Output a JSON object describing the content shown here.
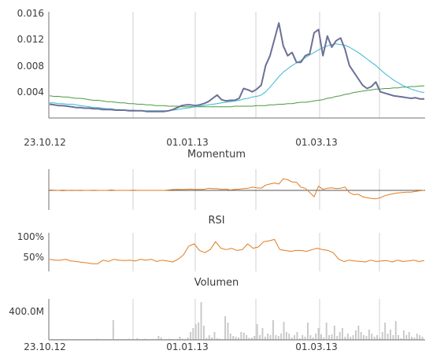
{
  "chart_data": [
    {
      "type": "line",
      "panel": "price",
      "y_ticks": [
        "0.016",
        "0.012",
        "0.008",
        "0.004"
      ],
      "y_tick_values": [
        0.016,
        0.012,
        0.008,
        0.004
      ],
      "ylim": [
        0,
        0.0162
      ],
      "x_tick_labels": [
        "23.10.12",
        "01.01.13",
        "01.03.13"
      ],
      "grid": "vertical",
      "series": [
        {
          "key": "price",
          "color": "#6b7096",
          "values": [
            0.0021,
            0.002,
            0.0019,
            0.0019,
            0.0018,
            0.0017,
            0.0016,
            0.0016,
            0.0015,
            0.0015,
            0.0014,
            0.0014,
            0.0013,
            0.0013,
            0.0013,
            0.0012,
            0.0012,
            0.0012,
            0.0011,
            0.0011,
            0.0011,
            0.0011,
            0.001,
            0.001,
            0.001,
            0.001,
            0.001,
            0.0011,
            0.0013,
            0.0016,
            0.0019,
            0.002,
            0.002,
            0.0019,
            0.002,
            0.0022,
            0.0025,
            0.003,
            0.0035,
            0.0028,
            0.0026,
            0.0027,
            0.0027,
            0.003,
            0.0045,
            0.0043,
            0.004,
            0.0044,
            0.005,
            0.008,
            0.0095,
            0.012,
            0.0145,
            0.011,
            0.0095,
            0.01,
            0.0085,
            0.0085,
            0.0095,
            0.0098,
            0.013,
            0.0135,
            0.0095,
            0.0125,
            0.0108,
            0.0118,
            0.0122,
            0.0105,
            0.008,
            0.007,
            0.006,
            0.005,
            0.0045,
            0.0048,
            0.0055,
            0.004,
            0.0038,
            0.0036,
            0.0034,
            0.0033,
            0.0032,
            0.0031,
            0.003,
            0.0031,
            0.0029,
            0.0029
          ]
        },
        {
          "key": "moving-average-fast",
          "color": "#39b8d4",
          "values": [
            0.0023,
            0.0023,
            0.0022,
            0.0022,
            0.0021,
            0.0021,
            0.002,
            0.0019,
            0.0018,
            0.0017,
            0.0016,
            0.0016,
            0.0015,
            0.0014,
            0.0014,
            0.0013,
            0.0013,
            0.0012,
            0.0012,
            0.0012,
            0.0011,
            0.0011,
            0.0011,
            0.0011,
            0.0011,
            0.0011,
            0.0011,
            0.0011,
            0.0012,
            0.0013,
            0.0014,
            0.0015,
            0.0016,
            0.0017,
            0.0018,
            0.0019,
            0.002,
            0.0021,
            0.0022,
            0.0023,
            0.0024,
            0.0025,
            0.0026,
            0.0027,
            0.0029,
            0.003,
            0.0032,
            0.0033,
            0.0035,
            0.004,
            0.0047,
            0.0055,
            0.0063,
            0.007,
            0.0075,
            0.008,
            0.0084,
            0.0088,
            0.0092,
            0.0096,
            0.01,
            0.0104,
            0.0107,
            0.011,
            0.0112,
            0.0113,
            0.0112,
            0.0111,
            0.0108,
            0.0104,
            0.01,
            0.0095,
            0.009,
            0.0085,
            0.008,
            0.0074,
            0.0068,
            0.0063,
            0.0058,
            0.0054,
            0.005,
            0.0047,
            0.0044,
            0.0042,
            0.004,
            0.0039
          ]
        },
        {
          "key": "moving-average-slow",
          "color": "#4a9a3e",
          "values": [
            0.0034,
            0.0033,
            0.0033,
            0.0032,
            0.0032,
            0.0031,
            0.003,
            0.003,
            0.0029,
            0.0028,
            0.0027,
            0.0027,
            0.0026,
            0.0025,
            0.0025,
            0.0024,
            0.0023,
            0.0023,
            0.0022,
            0.0022,
            0.0021,
            0.0021,
            0.002,
            0.002,
            0.0019,
            0.0019,
            0.0019,
            0.0018,
            0.0018,
            0.0018,
            0.0017,
            0.0017,
            0.0017,
            0.0017,
            0.0017,
            0.0017,
            0.0017,
            0.0017,
            0.0017,
            0.0017,
            0.0017,
            0.0017,
            0.0018,
            0.0018,
            0.0018,
            0.0018,
            0.0018,
            0.0019,
            0.0019,
            0.0019,
            0.002,
            0.002,
            0.0021,
            0.0021,
            0.0022,
            0.0022,
            0.0023,
            0.0024,
            0.0024,
            0.0025,
            0.0026,
            0.0027,
            0.0028,
            0.003,
            0.0031,
            0.0033,
            0.0034,
            0.0036,
            0.0037,
            0.0039,
            0.004,
            0.0041,
            0.0042,
            0.0043,
            0.0044,
            0.0044,
            0.0045,
            0.0045,
            0.0046,
            0.0046,
            0.0047,
            0.0047,
            0.0048,
            0.0048,
            0.0049,
            0.0049
          ]
        }
      ]
    },
    {
      "type": "line",
      "panel": "momentum",
      "title": "Momentum",
      "ylim": [
        -1,
        1
      ],
      "baseline": 0,
      "series": [
        {
          "key": "momentum",
          "color": "#e07a1f",
          "values": [
            0.02,
            0.01,
            0.0,
            -0.02,
            0.0,
            -0.01,
            0.0,
            -0.01,
            0.0,
            0.0,
            -0.01,
            0.0,
            0.0,
            0.0,
            0.02,
            0.0,
            0.0,
            0.0,
            0.0,
            0.01,
            0.0,
            0.0,
            0.0,
            0.0,
            0.0,
            0.0,
            0.0,
            0.02,
            0.04,
            0.05,
            0.04,
            0.05,
            0.06,
            0.04,
            0.05,
            0.05,
            0.1,
            0.08,
            0.08,
            0.05,
            0.06,
            0.02,
            0.05,
            0.06,
            0.08,
            0.1,
            0.15,
            0.12,
            0.1,
            0.25,
            0.3,
            0.35,
            0.3,
            0.55,
            0.5,
            0.4,
            0.38,
            0.15,
            0.1,
            -0.1,
            -0.3,
            0.2,
            0.05,
            0.1,
            0.12,
            0.08,
            0.1,
            0.15,
            -0.1,
            -0.2,
            -0.18,
            -0.3,
            -0.35,
            -0.38,
            -0.4,
            -0.35,
            -0.25,
            -0.2,
            -0.15,
            -0.12,
            -0.1,
            -0.08,
            -0.08,
            -0.05,
            -0.02,
            0.0
          ]
        }
      ]
    },
    {
      "type": "line",
      "panel": "rsi",
      "title": "RSI",
      "y_ticks": [
        "100%",
        "50%"
      ],
      "y_tick_values": [
        100,
        50
      ],
      "ylim": [
        0,
        100
      ],
      "series": [
        {
          "key": "rsi",
          "color": "#e07a1f",
          "values": [
            40,
            38,
            38,
            40,
            36,
            35,
            33,
            32,
            30,
            30,
            38,
            35,
            40,
            38,
            37,
            38,
            36,
            40,
            38,
            40,
            35,
            38,
            36,
            34,
            40,
            50,
            70,
            75,
            60,
            55,
            62,
            80,
            65,
            62,
            65,
            60,
            62,
            75,
            65,
            68,
            80,
            82,
            85,
            62,
            60,
            58,
            60,
            60,
            58,
            62,
            65,
            62,
            60,
            55,
            40,
            35,
            38,
            36,
            35,
            34,
            38,
            35,
            36,
            37,
            34,
            38,
            35,
            36,
            38,
            35,
            37
          ]
        }
      ]
    },
    {
      "type": "bar",
      "panel": "volume",
      "title": "Volumen",
      "y_ticks": [
        "400.0M"
      ],
      "y_tick_values": [
        400
      ],
      "ylim": [
        0,
        520
      ],
      "x_tick_labels": [
        "23.10.12",
        "01.01.13",
        "01.03.13"
      ],
      "color": "#c8c8c8",
      "values": [
        10,
        5,
        8,
        5,
        12,
        6,
        4,
        10,
        5,
        8,
        5,
        3,
        6,
        10,
        8,
        5,
        12,
        15,
        8,
        5,
        6,
        4,
        10,
        250,
        5,
        12,
        10,
        8,
        6,
        15,
        10,
        8,
        20,
        5,
        10,
        15,
        8,
        6,
        12,
        5,
        50,
        30,
        10,
        8,
        15,
        10,
        6,
        12,
        40,
        15,
        8,
        30,
        100,
        150,
        200,
        220,
        480,
        180,
        25,
        60,
        30,
        100,
        20,
        15,
        10,
        300,
        220,
        80,
        50,
        40,
        30,
        100,
        90,
        60,
        25,
        30,
        50,
        200,
        60,
        150,
        40,
        80,
        60,
        250,
        60,
        50,
        80,
        230,
        100,
        80,
        30,
        60,
        100,
        20,
        60,
        40,
        220,
        60,
        30,
        80,
        150,
        70,
        30,
        220,
        60,
        70,
        180,
        50,
        100,
        150,
        40,
        80,
        40,
        60,
        120,
        180,
        100,
        60,
        50,
        130,
        80,
        40,
        60,
        30,
        100,
        220,
        80,
        130,
        60,
        240,
        60,
        20,
        120,
        60,
        100,
        40,
        30,
        80,
        60,
        40
      ]
    }
  ]
}
